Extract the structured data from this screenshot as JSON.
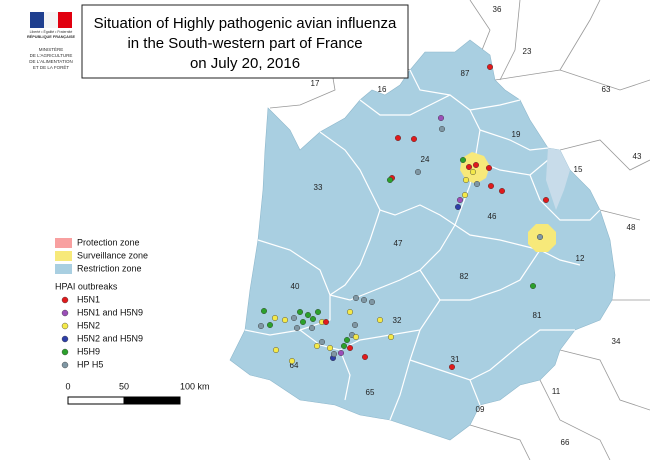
{
  "logo": {
    "motto": "Liberté • Égalité • Fraternité",
    "republic": "RÉPUBLIQUE FRANÇAISE",
    "ministry": [
      "MINISTÈRE",
      "DE L'AGRICULTURE",
      "DE L'ALIMENTATION",
      "ET DE LA FORÊT"
    ]
  },
  "title": [
    "Situation of Highly pathogenic avian influenza",
    "in the South-western part of France",
    "on July 20, 2016"
  ],
  "legend": {
    "zones": [
      {
        "name": "Protection zone",
        "color": "#f8a0a0"
      },
      {
        "name": "Surveillance zone",
        "color": "#f7e97a"
      },
      {
        "name": "Restriction zone",
        "color": "#a9cfe1"
      }
    ],
    "outbreaks_title": "HPAI outbreaks",
    "outbreaks": [
      {
        "name": "H5N1",
        "color": "#e01a1c"
      },
      {
        "name": "H5N1 and H5N9",
        "color": "#9b4fb8"
      },
      {
        "name": "H5N2",
        "color": "#f4e94a"
      },
      {
        "name": "H5N2 and H5N9",
        "color": "#2e3fa8"
      },
      {
        "name": "H5H9",
        "color": "#2ca02c"
      },
      {
        "name": "HP H5",
        "color": "#7f97a4"
      }
    ]
  },
  "scale": [
    "0",
    "50",
    "100 km"
  ],
  "departments": [
    "36",
    "23",
    "87",
    "17",
    "16",
    "19",
    "63",
    "24",
    "15",
    "43",
    "33",
    "46",
    "48",
    "47",
    "12",
    "82",
    "40",
    "81",
    "32",
    "34",
    "64",
    "31",
    "65",
    "11",
    "09",
    "66"
  ]
}
